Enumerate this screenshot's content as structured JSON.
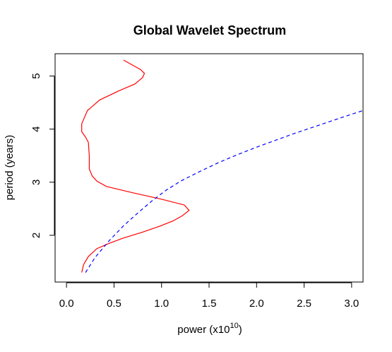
{
  "chart_data": {
    "type": "line",
    "title": "Global Wavelet Spectrum",
    "xlabel_main": "power (x10",
    "xlabel_sup": "10",
    "xlabel_close": ")",
    "ylabel": "period (years)",
    "xlim": [
      -0.12,
      3.12
    ],
    "ylim": [
      1.12,
      5.42
    ],
    "xticks": [
      0.0,
      0.5,
      1.0,
      1.5,
      2.0,
      2.5,
      3.0
    ],
    "xtick_labels": [
      "0.0",
      "0.5",
      "1.0",
      "1.5",
      "2.0",
      "2.5",
      "3.0"
    ],
    "yticks": [
      2,
      3,
      4,
      5
    ],
    "ytick_labels": [
      "2",
      "3",
      "4",
      "5"
    ],
    "grid": false,
    "legend": "none",
    "series": [
      {
        "color": "#ff0000",
        "dash": "solid",
        "points": [
          [
            0.16,
            1.3
          ],
          [
            0.18,
            1.45
          ],
          [
            0.23,
            1.6
          ],
          [
            0.32,
            1.75
          ],
          [
            0.45,
            1.85
          ],
          [
            0.6,
            1.95
          ],
          [
            0.8,
            2.06
          ],
          [
            0.98,
            2.17
          ],
          [
            1.12,
            2.27
          ],
          [
            1.22,
            2.37
          ],
          [
            1.29,
            2.47
          ],
          [
            1.24,
            2.57
          ],
          [
            1.0,
            2.68
          ],
          [
            0.7,
            2.8
          ],
          [
            0.42,
            2.92
          ],
          [
            0.32,
            3.02
          ],
          [
            0.27,
            3.12
          ],
          [
            0.24,
            3.25
          ],
          [
            0.24,
            3.5
          ],
          [
            0.23,
            3.75
          ],
          [
            0.2,
            3.85
          ],
          [
            0.16,
            3.95
          ],
          [
            0.16,
            4.1
          ],
          [
            0.22,
            4.35
          ],
          [
            0.35,
            4.55
          ],
          [
            0.55,
            4.72
          ],
          [
            0.72,
            4.85
          ],
          [
            0.8,
            4.97
          ],
          [
            0.82,
            5.05
          ],
          [
            0.78,
            5.12
          ],
          [
            0.7,
            5.2
          ],
          [
            0.6,
            5.3
          ]
        ]
      },
      {
        "color": "#0000ff",
        "dash": "dashed",
        "points": [
          [
            0.2,
            1.3
          ],
          [
            0.3,
            1.58
          ],
          [
            0.45,
            1.9
          ],
          [
            0.6,
            2.18
          ],
          [
            0.75,
            2.42
          ],
          [
            0.9,
            2.65
          ],
          [
            1.05,
            2.85
          ],
          [
            1.2,
            3.02
          ],
          [
            1.4,
            3.2
          ],
          [
            1.6,
            3.37
          ],
          [
            1.8,
            3.52
          ],
          [
            2.0,
            3.66
          ],
          [
            2.2,
            3.79
          ],
          [
            2.4,
            3.92
          ],
          [
            2.6,
            4.04
          ],
          [
            2.8,
            4.16
          ],
          [
            3.0,
            4.28
          ],
          [
            3.12,
            4.35
          ]
        ]
      }
    ]
  }
}
